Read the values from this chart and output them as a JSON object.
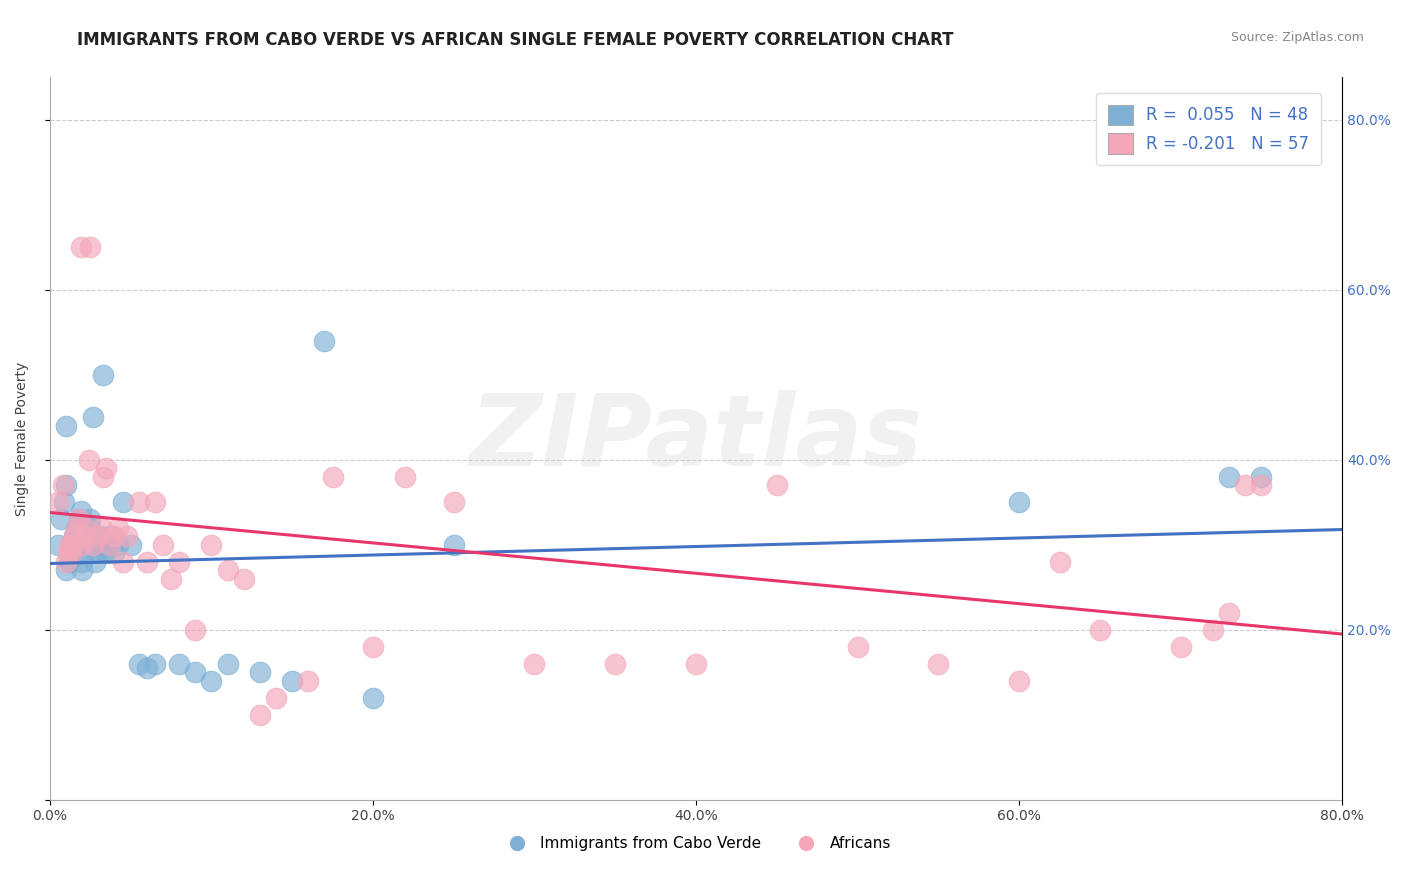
{
  "title": "IMMIGRANTS FROM CABO VERDE VS AFRICAN SINGLE FEMALE POVERTY CORRELATION CHART",
  "source": "Source: ZipAtlas.com",
  "ylabel": "Single Female Poverty",
  "xlim": [
    0.0,
    0.8
  ],
  "ylim": [
    0.0,
    0.85
  ],
  "ytick_vals": [
    0.0,
    0.2,
    0.4,
    0.6,
    0.8
  ],
  "xtick_vals": [
    0.0,
    0.2,
    0.4,
    0.6,
    0.8
  ],
  "xtick_labels": [
    "0.0%",
    "20.0%",
    "40.0%",
    "60.0%",
    "80.0%"
  ],
  "right_ytick_vals": [
    0.2,
    0.4,
    0.6,
    0.8
  ],
  "right_ytick_labels": [
    "20.0%",
    "40.0%",
    "60.0%",
    "80.0%"
  ],
  "blue_color": "#7EB0D5",
  "pink_color": "#F4A7B9",
  "blue_line_color": "#4472C4",
  "pink_line_color": "#E8366A",
  "legend_R1": "R =  0.055",
  "legend_N1": "N = 48",
  "legend_R2": "R = -0.201",
  "legend_N2": "N = 57",
  "legend_label1": "Immigrants from Cabo Verde",
  "legend_label2": "Africans",
  "blue_scatter_x": [
    0.005,
    0.007,
    0.009,
    0.01,
    0.01,
    0.01,
    0.012,
    0.013,
    0.014,
    0.015,
    0.016,
    0.018,
    0.019,
    0.02,
    0.02,
    0.021,
    0.022,
    0.023,
    0.025,
    0.025,
    0.027,
    0.028,
    0.03,
    0.031,
    0.032,
    0.033,
    0.035,
    0.037,
    0.038,
    0.04,
    0.042,
    0.045,
    0.05,
    0.055,
    0.06,
    0.065,
    0.08,
    0.09,
    0.1,
    0.11,
    0.13,
    0.15,
    0.17,
    0.2,
    0.25,
    0.6,
    0.73,
    0.75
  ],
  "blue_scatter_y": [
    0.3,
    0.33,
    0.35,
    0.37,
    0.27,
    0.44,
    0.28,
    0.29,
    0.3,
    0.31,
    0.32,
    0.33,
    0.34,
    0.27,
    0.28,
    0.29,
    0.3,
    0.31,
    0.32,
    0.33,
    0.45,
    0.28,
    0.29,
    0.3,
    0.31,
    0.5,
    0.29,
    0.3,
    0.31,
    0.29,
    0.3,
    0.35,
    0.3,
    0.16,
    0.155,
    0.16,
    0.16,
    0.15,
    0.14,
    0.16,
    0.15,
    0.14,
    0.54,
    0.12,
    0.3,
    0.35,
    0.38,
    0.38
  ],
  "pink_scatter_x": [
    0.005,
    0.008,
    0.01,
    0.011,
    0.012,
    0.013,
    0.014,
    0.015,
    0.016,
    0.018,
    0.019,
    0.02,
    0.021,
    0.022,
    0.024,
    0.025,
    0.027,
    0.03,
    0.032,
    0.033,
    0.035,
    0.037,
    0.04,
    0.042,
    0.045,
    0.048,
    0.055,
    0.06,
    0.065,
    0.07,
    0.075,
    0.08,
    0.09,
    0.1,
    0.11,
    0.12,
    0.13,
    0.14,
    0.16,
    0.175,
    0.2,
    0.22,
    0.25,
    0.3,
    0.35,
    0.4,
    0.45,
    0.5,
    0.55,
    0.6,
    0.625,
    0.65,
    0.7,
    0.72,
    0.73,
    0.74,
    0.75
  ],
  "pink_scatter_y": [
    0.35,
    0.37,
    0.28,
    0.29,
    0.3,
    0.29,
    0.3,
    0.31,
    0.32,
    0.33,
    0.65,
    0.3,
    0.31,
    0.32,
    0.4,
    0.65,
    0.3,
    0.31,
    0.32,
    0.38,
    0.39,
    0.3,
    0.31,
    0.32,
    0.28,
    0.31,
    0.35,
    0.28,
    0.35,
    0.3,
    0.26,
    0.28,
    0.2,
    0.3,
    0.27,
    0.26,
    0.1,
    0.12,
    0.14,
    0.38,
    0.18,
    0.38,
    0.35,
    0.16,
    0.16,
    0.16,
    0.37,
    0.18,
    0.16,
    0.14,
    0.28,
    0.2,
    0.18,
    0.2,
    0.22,
    0.37,
    0.37
  ],
  "blue_line_x": [
    0.0,
    0.8
  ],
  "blue_line_y": [
    0.278,
    0.318
  ],
  "pink_line_x": [
    0.0,
    0.8
  ],
  "pink_line_y": [
    0.338,
    0.195
  ],
  "title_fontsize": 12,
  "label_fontsize": 10,
  "tick_fontsize": 10
}
